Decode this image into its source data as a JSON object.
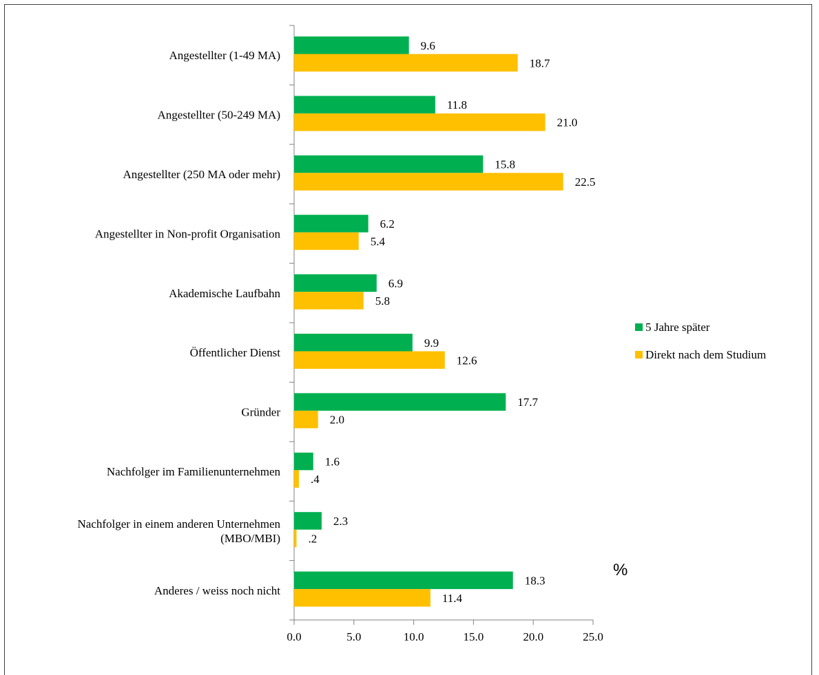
{
  "chart_data": {
    "type": "bar",
    "orientation": "horizontal",
    "categories": [
      [
        "Angestellter (1-49 MA)"
      ],
      [
        "Angestellter (50-249 MA)"
      ],
      [
        "Angestellter (250 MA oder mehr)"
      ],
      [
        "Angestellter in Non-profit Organisation"
      ],
      [
        "Akademische Laufbahn"
      ],
      [
        "Öffentlicher Dienst"
      ],
      [
        "Gründer"
      ],
      [
        "Nachfolger im Familienunternehmen"
      ],
      [
        "Nachfolger in einem anderen Unternehmen",
        "(MBO/MBI)"
      ],
      [
        "Anderes / weiss noch nicht"
      ]
    ],
    "series": [
      {
        "name": "5 Jahre später",
        "color": "#00B050",
        "values": [
          9.6,
          11.8,
          15.8,
          6.2,
          6.9,
          9.9,
          17.7,
          1.6,
          2.3,
          18.3
        ],
        "labels": [
          "9.6",
          "11.8",
          "15.8",
          "6.2",
          "6.9",
          "9.9",
          "17.7",
          "1.6",
          "2.3",
          "18.3"
        ]
      },
      {
        "name": "Direkt nach dem Studium",
        "color": "#FFC000",
        "values": [
          18.7,
          21.0,
          22.5,
          5.4,
          5.8,
          12.6,
          2.0,
          0.4,
          0.2,
          11.4
        ],
        "labels": [
          "18.7",
          "21.0",
          "22.5",
          "5.4",
          "5.8",
          "12.6",
          "2.0",
          ".4",
          ".2",
          "11.4"
        ]
      }
    ],
    "x_ticks": [
      "0.0",
      "5.0",
      "10.0",
      "15.0",
      "20.0",
      "25.0"
    ],
    "xlim": [
      0,
      25
    ],
    "unit_label": "%",
    "legend_position": "right",
    "grid": false
  }
}
